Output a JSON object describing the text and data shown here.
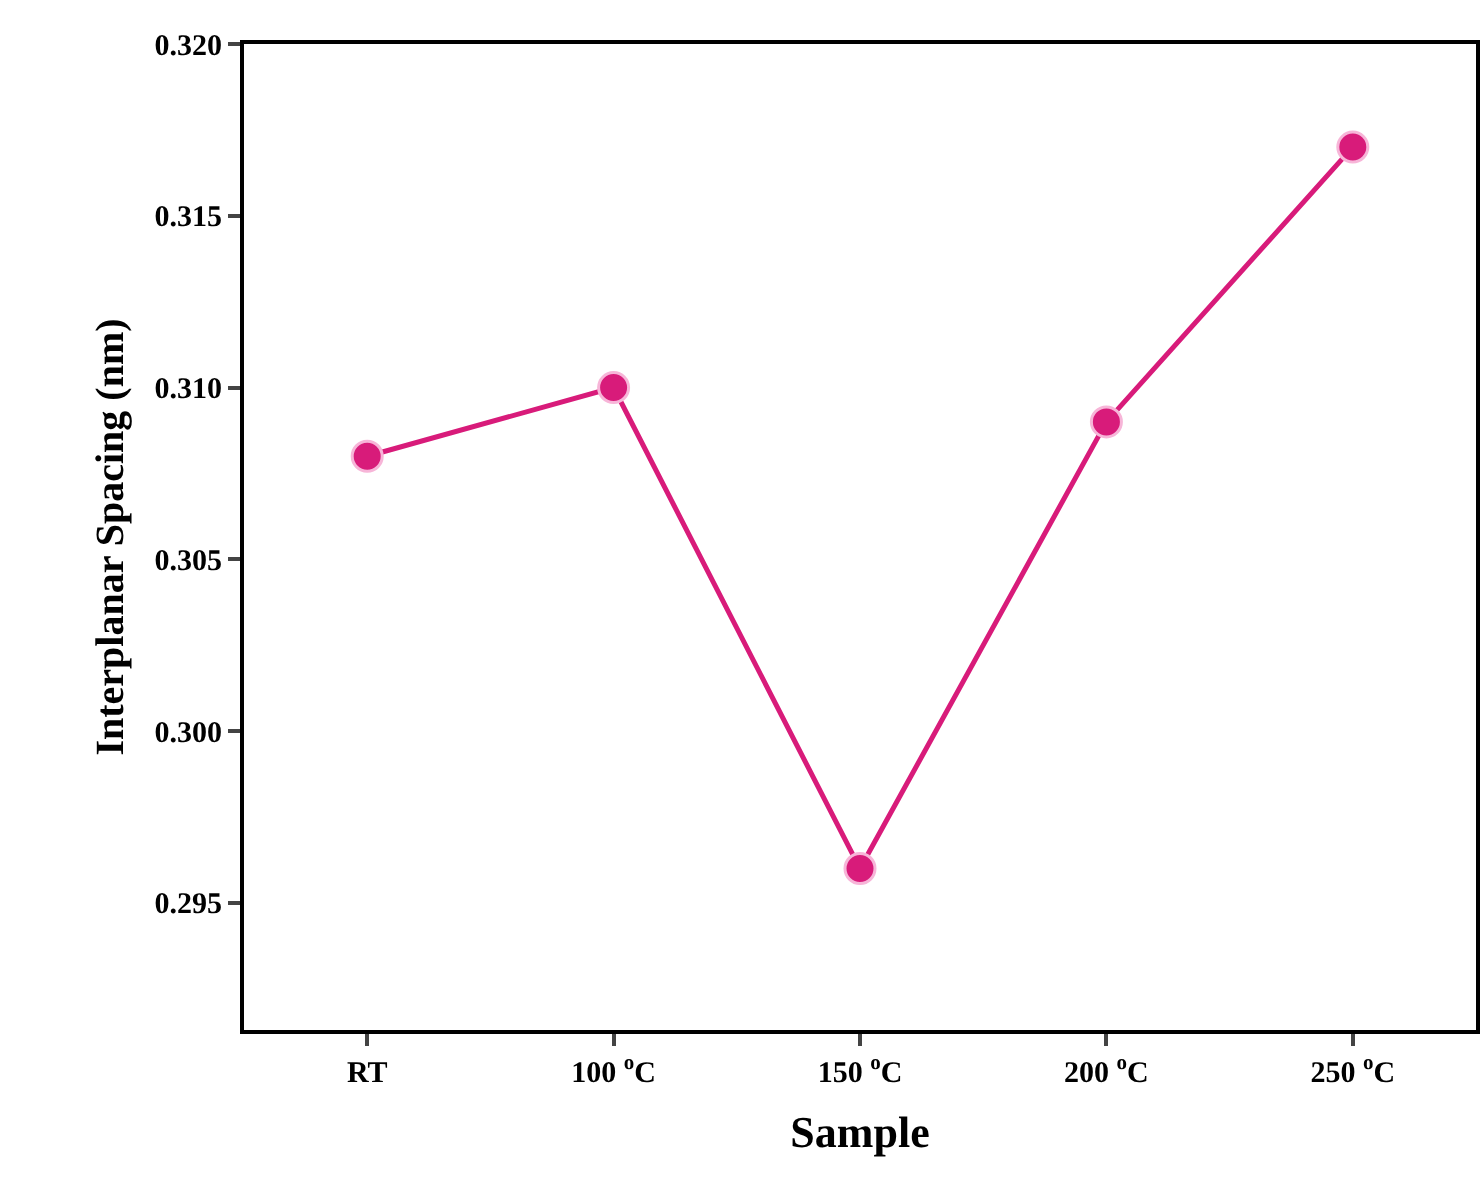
{
  "chart_data": {
    "type": "line",
    "xlabel": "Sample",
    "ylabel": "Interplanar Spacing (nm)",
    "categories": [
      "RT",
      "100 $^{o}$C",
      "150 $^{o}$C",
      "200 $^{o}$C",
      "250 $^{o}$C"
    ],
    "series": [
      {
        "color": "#d81b7a",
        "values": [
          0.308,
          0.31,
          0.296,
          0.309,
          0.317
        ]
      }
    ],
    "ylim": [
      0.2913,
      0.32
    ],
    "yticks": [
      {
        "value": 0.295,
        "label": "0.295"
      },
      {
        "value": 0.3,
        "label": "0.300"
      },
      {
        "value": 0.305,
        "label": "0.305"
      },
      {
        "value": 0.31,
        "label": "0.310"
      },
      {
        "value": 0.315,
        "label": "0.315"
      },
      {
        "value": 0.32,
        "label": "0.320"
      }
    ],
    "marker": "circle",
    "line_style": "solid"
  }
}
